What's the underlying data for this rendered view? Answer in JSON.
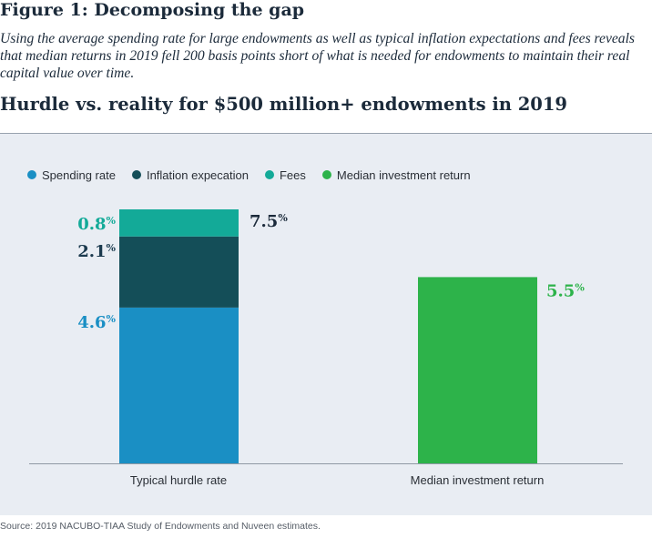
{
  "figure": {
    "title": "Figure 1: Decomposing the gap",
    "subtitle": "Using the average spending rate for large endowments as well as typical inflation expectations and fees reveals that median returns in 2019 fell 200 basis points short of what is needed for endowments to maintain their real capital value over time.",
    "source": "Source: 2019 NACUBO-TIAA Study of Endowments and Nuveen estimates."
  },
  "chart_data": {
    "type": "bar",
    "title": "Hurdle vs. reality for $500 million+ endowments in 2019",
    "categories": [
      "Typical hurdle rate",
      "Median investment return"
    ],
    "series": [
      {
        "name": "Spending rate",
        "color": "#1a8fc4",
        "values": [
          4.6,
          0
        ],
        "label": "4.6",
        "label_color": "#1a8fc4"
      },
      {
        "name": "Inflation expecation",
        "color": "#144e58",
        "values": [
          2.1,
          0
        ],
        "label": "2.1",
        "label_color": "#1b3a4e"
      },
      {
        "name": "Fees",
        "color": "#13aa98",
        "values": [
          0.8,
          0
        ],
        "label": "0.8",
        "label_color": "#13aa98"
      },
      {
        "name": "Median investment return",
        "color": "#2db34a",
        "values": [
          0,
          5.5
        ],
        "label": "5.5",
        "label_color": "#2db34a"
      }
    ],
    "totals": [
      {
        "category": "Typical hurdle rate",
        "value": 7.5,
        "label": "7.5",
        "color": "#1b2a3a"
      }
    ],
    "percent_sign": "%",
    "ylim": [
      0,
      7.5
    ],
    "xlabel": "",
    "ylabel": "",
    "legend": "top-left",
    "grid": false
  }
}
